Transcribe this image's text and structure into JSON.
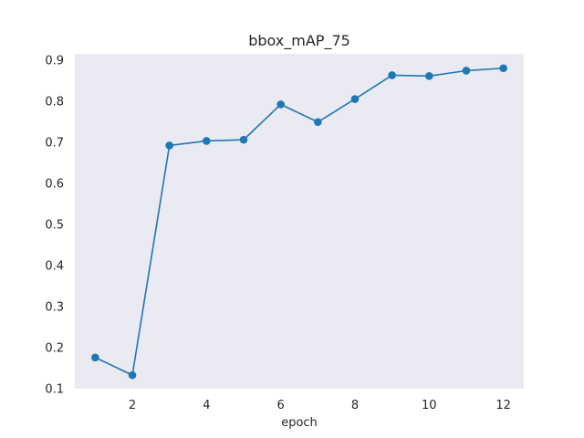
{
  "chart_data": {
    "type": "line",
    "title": "bbox_mAP_75",
    "xlabel": "epoch",
    "ylabel": "",
    "x": [
      1,
      2,
      3,
      4,
      5,
      6,
      7,
      8,
      9,
      10,
      11,
      12
    ],
    "series": [
      {
        "values": [
          0.176,
          0.133,
          0.692,
          0.703,
          0.706,
          0.792,
          0.749,
          0.805,
          0.863,
          0.861,
          0.874,
          0.88
        ],
        "color": "#1f77b4",
        "marker": "circle"
      }
    ],
    "xlim": [
      0.45,
      12.55
    ],
    "ylim": [
      0.1,
      0.915
    ],
    "xticks": [
      2,
      4,
      6,
      8,
      10,
      12
    ],
    "xtick_labels": [
      "2",
      "4",
      "6",
      "8",
      "10",
      "12"
    ],
    "yticks": [
      0.1,
      0.2,
      0.3,
      0.4,
      0.5,
      0.6,
      0.7,
      0.8,
      0.9
    ],
    "ytick_labels": [
      "0.1",
      "0.2",
      "0.3",
      "0.4",
      "0.5",
      "0.6",
      "0.7",
      "0.8",
      "0.9"
    ],
    "grid": false,
    "plot_background": "#eaeaf2",
    "figure_background": "#ffffff"
  }
}
